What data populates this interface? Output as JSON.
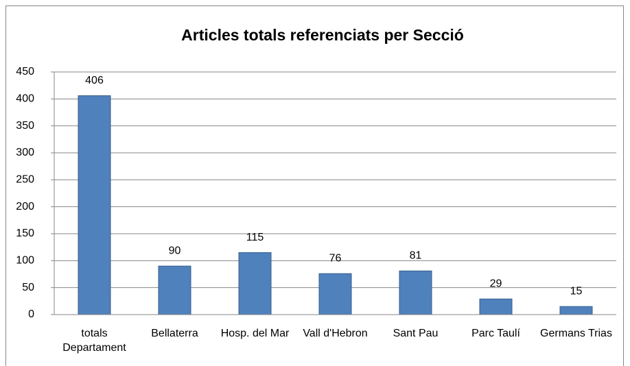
{
  "chart_data": {
    "type": "bar",
    "title": "Articles totals referenciats per Secció",
    "categories": [
      "totals Departament",
      "Bellaterra",
      "Hosp. del Mar",
      "Vall d'Hebron",
      "Sant Pau",
      "Parc Taulí",
      "Germans Trias"
    ],
    "values": [
      406,
      90,
      115,
      76,
      81,
      29,
      15
    ],
    "color": "#4f81bd",
    "ylim": [
      0,
      450
    ],
    "yticks": [
      0,
      50,
      100,
      150,
      200,
      250,
      300,
      350,
      400,
      450
    ],
    "grid": true
  }
}
